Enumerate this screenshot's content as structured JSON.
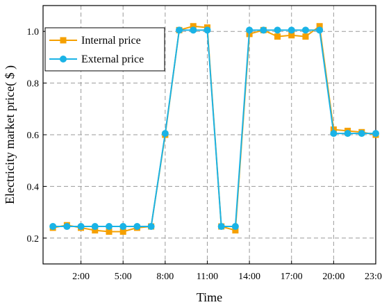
{
  "chart_data": {
    "type": "line",
    "title": "",
    "xlabel": "Time",
    "ylabel": "Electricity market price( $ )",
    "xlim": [
      -0.7,
      23
    ],
    "ylim": [
      0.1,
      1.1
    ],
    "x_ticks": [
      2,
      5,
      8,
      11,
      14,
      17,
      20,
      23
    ],
    "x_tick_labels": [
      "2:00",
      "5:00",
      "8:00",
      "11:00",
      "14:00",
      "17:00",
      "20:00",
      "23:00"
    ],
    "y_ticks": [
      0.2,
      0.4,
      0.6,
      0.8,
      1.0
    ],
    "y_tick_labels": [
      "0.2",
      "0.4",
      "0.6",
      "0.8",
      "1.0"
    ],
    "grid": true,
    "legend_position": "top-left",
    "x": [
      0,
      1,
      2,
      3,
      4,
      5,
      6,
      7,
      8,
      9,
      10,
      11,
      12,
      13,
      14,
      15,
      16,
      17,
      18,
      19,
      20,
      21,
      22,
      23
    ],
    "series": [
      {
        "name": "Internal price",
        "color": "#f5a000",
        "marker": "square",
        "values": [
          0.24,
          0.25,
          0.24,
          0.23,
          0.225,
          0.225,
          0.24,
          0.245,
          0.6,
          1.005,
          1.02,
          1.015,
          0.245,
          0.23,
          0.99,
          1.005,
          0.98,
          0.985,
          0.98,
          1.02,
          0.62,
          0.615,
          0.61,
          0.6
        ]
      },
      {
        "name": "External price",
        "color": "#1ab3e6",
        "marker": "circle",
        "values": [
          0.245,
          0.245,
          0.245,
          0.245,
          0.245,
          0.245,
          0.245,
          0.245,
          0.605,
          1.005,
          1.005,
          1.005,
          0.245,
          0.245,
          1.005,
          1.005,
          1.005,
          1.005,
          1.005,
          1.005,
          0.605,
          0.605,
          0.605,
          0.605
        ]
      }
    ]
  }
}
